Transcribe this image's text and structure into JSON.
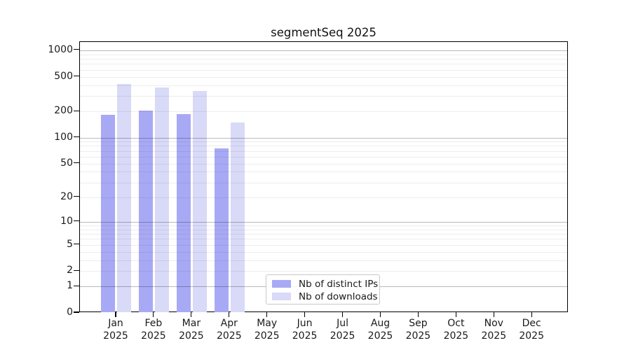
{
  "figure": {
    "background": "#ffffff",
    "text_color": "#1a1a1a",
    "spine_color": "#000000",
    "grid_major_color": "rgba(0,0,0,0.27)",
    "grid_minor_color": "rgba(0,0,0,0.07)"
  },
  "chart_data": {
    "type": "bar",
    "title": "segmentSeq 2025",
    "xlabel": "",
    "ylabel": "",
    "y_scale": "log10(value+1)",
    "ylim": [
      0,
      1280
    ],
    "grid": "on",
    "legend_position": "lower center",
    "categories": [
      "Jan 2025",
      "Feb 2025",
      "Mar 2025",
      "Apr 2025",
      "May 2025",
      "Jun 2025",
      "Jul 2025",
      "Aug 2025",
      "Sep 2025",
      "Oct 2025",
      "Nov 2025",
      "Dec 2025"
    ],
    "series": [
      {
        "name": "Nb of distinct IPs",
        "color": "#a8a9f4",
        "values": [
          184,
          206,
          187,
          75,
          0,
          0,
          0,
          0,
          0,
          0,
          0,
          0
        ]
      },
      {
        "name": "Nb of downloads",
        "color": "#d9daf7",
        "values": [
          416,
          374,
          341,
          148,
          0,
          0,
          0,
          0,
          0,
          0,
          0,
          0
        ]
      }
    ],
    "yticks": [
      1000,
      500,
      200,
      100,
      50,
      20,
      10,
      5,
      2,
      1,
      0
    ],
    "grid_major_at": [
      1,
      10,
      100,
      1000
    ],
    "grid_minor_at": [
      2,
      3,
      4,
      5,
      6,
      7,
      8,
      9,
      20,
      30,
      40,
      50,
      60,
      70,
      80,
      90,
      200,
      300,
      400,
      500,
      600,
      700,
      800,
      900
    ]
  }
}
